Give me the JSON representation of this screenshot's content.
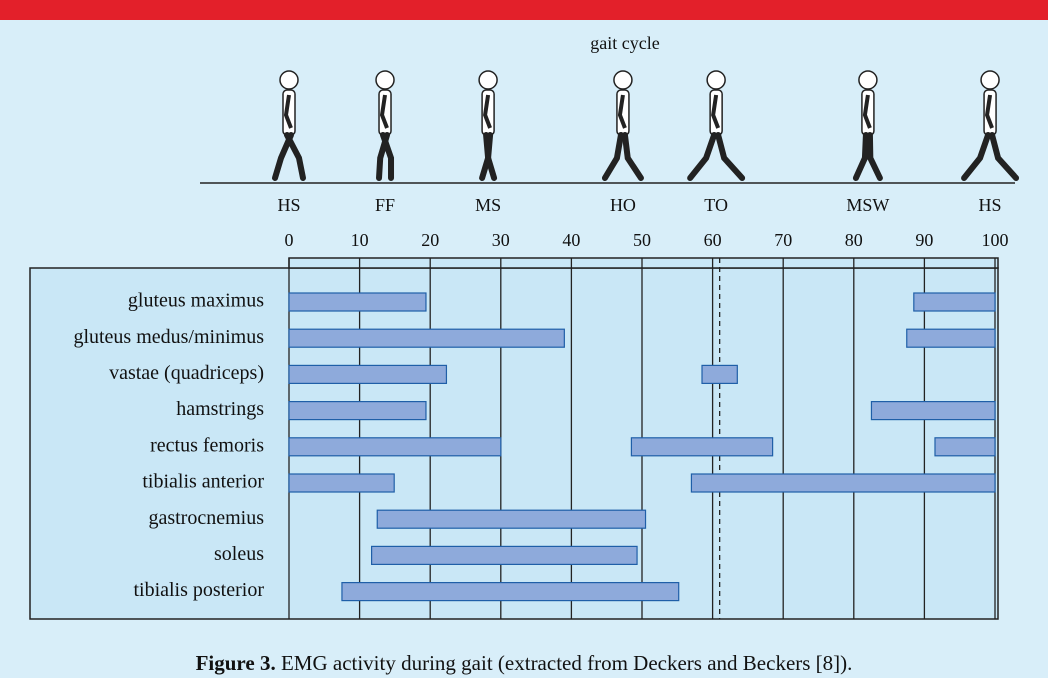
{
  "chart_data": {
    "type": "range-bar",
    "title": "gait cycle",
    "phases": [
      {
        "label": "HS",
        "value": 0
      },
      {
        "label": "FF",
        "value": 13.6
      },
      {
        "label": "MS",
        "value": 28.2
      },
      {
        "label": "HO",
        "value": 47.3
      },
      {
        "label": "TO",
        "value": 60.5
      },
      {
        "label": "MSW",
        "value": 82
      },
      {
        "label": "HS",
        "value": 99.3
      }
    ],
    "xlim": [
      0,
      100
    ],
    "xticks": [
      0,
      10,
      20,
      30,
      40,
      50,
      60,
      70,
      80,
      90,
      100
    ],
    "marker_line": 61,
    "color": "#8eaadb",
    "categories": [
      "gluteus maximus",
      "gluteus medus/minimus",
      "vastae (quadriceps)",
      "hamstrings",
      "rectus femoris",
      "tibialis anterior",
      "gastrocnemius",
      "soleus",
      "tibialis posterior"
    ],
    "ranges": [
      [
        [
          0,
          19.4
        ],
        [
          88.5,
          100
        ]
      ],
      [
        [
          0,
          39
        ],
        [
          87.5,
          100
        ]
      ],
      [
        [
          0,
          22.3
        ],
        [
          58.5,
          63.5
        ]
      ],
      [
        [
          0,
          19.4
        ],
        [
          82.5,
          100
        ]
      ],
      [
        [
          0,
          30
        ],
        [
          48.5,
          68.5
        ],
        [
          91.5,
          100
        ]
      ],
      [
        [
          0,
          14.9
        ],
        [
          57,
          100
        ]
      ],
      [
        [
          12.5,
          50.5
        ]
      ],
      [
        [
          11.7,
          49.3
        ]
      ],
      [
        [
          7.5,
          55.2
        ]
      ]
    ],
    "caption": {
      "label": "Figure 3.",
      "text": " EMG activity during gait (extracted from Deckers and Beckers [8])."
    }
  }
}
